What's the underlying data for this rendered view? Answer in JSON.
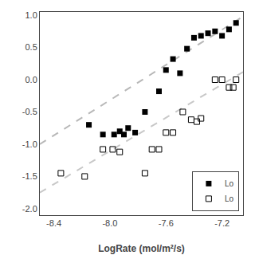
{
  "chart_data": {
    "type": "scatter",
    "x_label": "LogRate (mol/m²/s)",
    "xlim": [
      -8.5,
      -7.05
    ],
    "ylim": [
      -2.1,
      1.05
    ],
    "xticks": [
      -8.4,
      {
        "value": -8.0,
        "label": "-8.0"
      },
      -7.6,
      -7.2
    ],
    "yticks": [
      {
        "value": -2.0,
        "label": "-2.0"
      },
      -1.5,
      {
        "value": -1.0,
        "label": "-1.0"
      },
      -0.5,
      {
        "value": 0.0,
        "label": "0.0"
      },
      0.5,
      {
        "value": 1.0,
        "label": "1.0"
      }
    ],
    "grid": false,
    "legend": "lower right",
    "series": [
      {
        "type": "line",
        "line_style": "dashed",
        "color": "#b8b8b8",
        "x": [
          -8.5,
          -7.05
        ],
        "values": [
          -1.0,
          0.98
        ]
      },
      {
        "type": "line",
        "line_style": "dashed",
        "color": "#c8c8c8",
        "x": [
          -8.5,
          -7.05
        ],
        "values": [
          -1.75,
          0.12
        ]
      },
      {
        "type": "scatter",
        "name": "Lo",
        "marker": "square",
        "color": "#000000",
        "x": [
          -8.15,
          -8.05,
          -7.97,
          -7.93,
          -7.9,
          -7.87,
          -7.82,
          -7.75,
          -7.65,
          -7.6,
          -7.55,
          -7.5,
          -7.45,
          -7.4,
          -7.35,
          -7.3,
          -7.25,
          -7.2,
          -7.15,
          -7.1
        ],
        "values": [
          -0.7,
          -0.85,
          -0.85,
          -0.8,
          -0.85,
          -0.75,
          -0.82,
          -0.5,
          -0.18,
          0.15,
          0.32,
          0.1,
          0.48,
          0.65,
          0.68,
          0.72,
          0.75,
          0.68,
          0.78,
          0.88
        ]
      },
      {
        "type": "scatter",
        "name": "Lo",
        "marker": "square-open",
        "color": "#000000",
        "x": [
          -8.35,
          -8.18,
          -8.05,
          -7.98,
          -7.93,
          -7.75,
          -7.7,
          -7.65,
          -7.6,
          -7.55,
          -7.48,
          -7.42,
          -7.38,
          -7.35,
          -7.25,
          -7.2,
          -7.15,
          -7.12,
          -7.1
        ],
        "values": [
          -1.45,
          -1.5,
          -1.08,
          -1.08,
          -1.12,
          -1.45,
          -1.08,
          -1.08,
          -0.82,
          -0.82,
          -0.5,
          -0.62,
          -0.65,
          -0.6,
          0.0,
          0.0,
          -0.12,
          -0.12,
          0.0
        ]
      }
    ]
  }
}
